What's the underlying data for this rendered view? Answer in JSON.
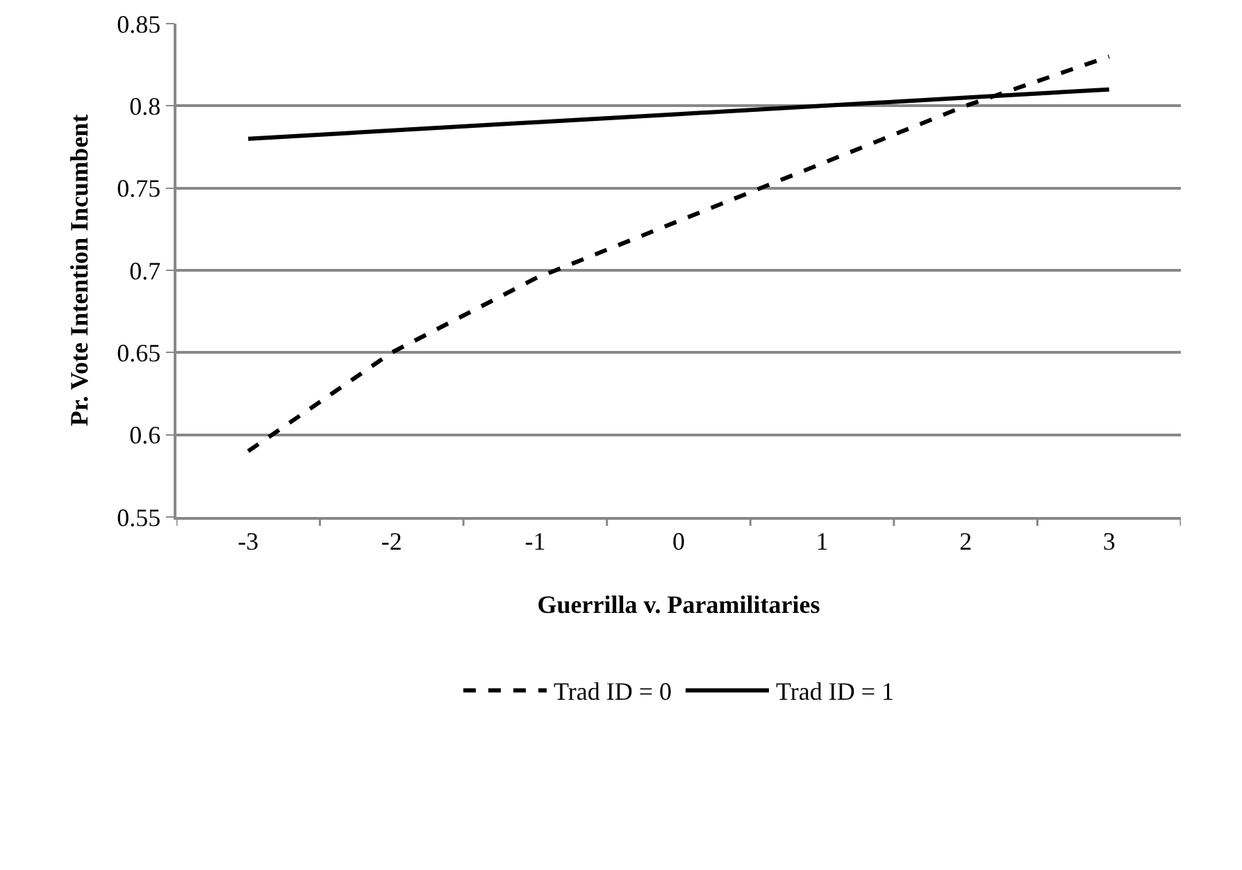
{
  "chart_data": {
    "type": "line",
    "xlabel": "Guerrilla v. Paramilitaries",
    "ylabel": "Pr. Vote Intention Incumbent",
    "categories": [
      "-3",
      "-2",
      "-1",
      "0",
      "1",
      "2",
      "3"
    ],
    "series": [
      {
        "name": "Trad ID = 0",
        "color": "#000000",
        "line_style": "dashed",
        "values": [
          0.59,
          0.65,
          0.695,
          0.73,
          0.765,
          0.8,
          0.83
        ]
      },
      {
        "name": "Trad ID = 1",
        "color": "#000000",
        "line_style": "solid",
        "values": [
          0.78,
          0.785,
          0.79,
          0.795,
          0.8,
          0.805,
          0.81
        ]
      }
    ],
    "ylim": [
      0.55,
      0.85
    ],
    "yticks": [
      0.55,
      0.6,
      0.65,
      0.7,
      0.75,
      0.8,
      0.85
    ],
    "grid": "y",
    "legend": "bottom",
    "marker": "none"
  }
}
